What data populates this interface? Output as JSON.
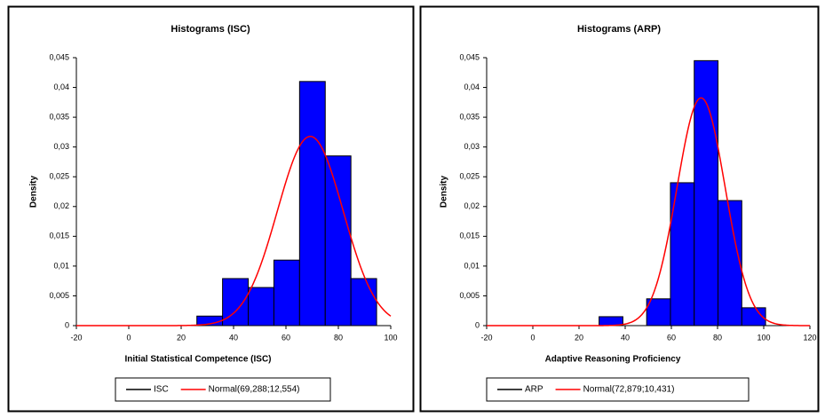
{
  "chart_data": [
    {
      "type": "histogram",
      "title": "Histograms (ISC)",
      "x_label": "Initial Statistical Competence (ISC)",
      "y_label": "Density",
      "bins": [
        26,
        35.8,
        45.6,
        55.4,
        65.2,
        75,
        84.8,
        94.6
      ],
      "values": [
        0.0016,
        0.0079,
        0.0064,
        0.011,
        0.041,
        0.0285,
        0.0079
      ],
      "color": "#0000ff",
      "series": [
        {
          "name": "ISC",
          "color": "#000000"
        },
        {
          "name": "Normal(69,288;12,554)",
          "color": "#ff0000",
          "mean": 69.288,
          "sd": 12.554
        }
      ],
      "xlim": [
        -20,
        100
      ],
      "xticks": [
        -20,
        0,
        20,
        40,
        60,
        80,
        100
      ],
      "ylim": [
        0,
        0.045
      ],
      "yticks": [
        0,
        {
          "value": 0.005,
          "label": "0,005"
        },
        {
          "value": 0.01,
          "label": "0,01"
        },
        {
          "value": 0.015,
          "label": "0,015"
        },
        {
          "value": 0.02,
          "label": "0,02"
        },
        {
          "value": 0.025,
          "label": "0,025"
        },
        {
          "value": 0.03,
          "label": "0,03"
        },
        {
          "value": 0.035,
          "label": "0,035"
        },
        {
          "value": 0.04,
          "label": "0,04"
        },
        {
          "value": 0.045,
          "label": "0,045"
        }
      ]
    },
    {
      "type": "histogram",
      "title": "Histograms (ARP)",
      "x_label": "Adaptive Reasoning Proficiency",
      "y_label": "Density",
      "bins": [
        28.7,
        39,
        49.3,
        59.6,
        69.9,
        80.2,
        90.5,
        100.8
      ],
      "values": [
        0.0015,
        0,
        0.0045,
        0.024,
        0.0445,
        0.021,
        0.003
      ],
      "color": "#0000ff",
      "series": [
        {
          "name": "ARP",
          "color": "#000000"
        },
        {
          "name": "Normal(72,879;10,431)",
          "color": "#ff0000",
          "mean": 72.879,
          "sd": 10.431
        }
      ],
      "xlim": [
        -20,
        120
      ],
      "xticks": [
        -20,
        0,
        20,
        40,
        60,
        80,
        100,
        120
      ],
      "ylim": [
        0,
        0.045
      ],
      "yticks": [
        0,
        {
          "value": 0.005,
          "label": "0,005"
        },
        {
          "value": 0.01,
          "label": "0,01"
        },
        {
          "value": 0.015,
          "label": "0,015"
        },
        {
          "value": 0.02,
          "label": "0,02"
        },
        {
          "value": 0.025,
          "label": "0,025"
        },
        {
          "value": 0.03,
          "label": "0,03"
        },
        {
          "value": 0.035,
          "label": "0,035"
        },
        {
          "value": 0.04,
          "label": "0,04"
        },
        {
          "value": 0.045,
          "label": "0,045"
        }
      ]
    }
  ]
}
